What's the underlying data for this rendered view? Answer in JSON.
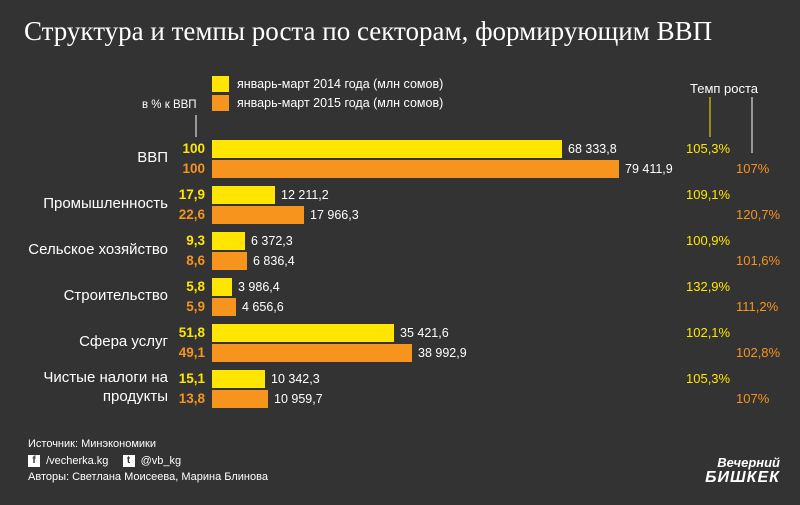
{
  "title": "Структура и темпы роста по секторам, формирующим ВВП",
  "legend": [
    {
      "label": "январь-март 2014 года (млн сомов)",
      "color": "#ffe600"
    },
    {
      "label": "январь-март 2015 года (млн сомов)",
      "color": "#f7941d"
    }
  ],
  "share_header": "в % к ВВП",
  "growth_header": "Темп роста",
  "colors": {
    "y2014": "#ffe600",
    "y2015": "#f7941d",
    "background": "#333333"
  },
  "chart_data": {
    "type": "bar",
    "orientation": "horizontal",
    "title": "Структура и темпы роста по секторам, формирующим ВВП",
    "categories": [
      "ВВП",
      "Промышленность",
      "Сельское хозяйство",
      "Строительство",
      "Сфера услуг",
      "Чистые налоги на продукты"
    ],
    "series": [
      {
        "name": "январь-март 2014 года (млн сомов)",
        "values": [
          68333.8,
          12211.2,
          6372.3,
          3986.4,
          35421.6,
          10342.3
        ],
        "labels": [
          "68 333,8",
          "12 211,2",
          "6 372,3",
          "3 986,4",
          "35 421,6",
          "10 342,3"
        ],
        "share": [
          "100",
          "17,9",
          "9,3",
          "5,8",
          "51,8",
          "15,1"
        ],
        "growth": [
          "105,3%",
          "109,1%",
          "100,9%",
          "132,9%",
          "102,1%",
          "105,3%"
        ]
      },
      {
        "name": "январь-март 2015 года (млн сомов)",
        "values": [
          79411.9,
          17966.3,
          6836.4,
          4656.6,
          38992.9,
          10959.7
        ],
        "labels": [
          "79 411,9",
          "17 966,3",
          "6 836,4",
          "4 656,6",
          "38 992,9",
          "10 959,7"
        ],
        "share": [
          "100",
          "22,6",
          "8,6",
          "5,9",
          "49,1",
          "13,8"
        ],
        "growth": [
          "107%",
          "120,7%",
          "101,6%",
          "111,2%",
          "102,8%",
          "107%"
        ]
      }
    ],
    "grid": false,
    "legend_position": "top"
  },
  "footer": {
    "source": "Источник: Минэкономики",
    "facebook_icon": "f",
    "facebook": "/vecherka.kg",
    "twitter_icon": "t",
    "twitter": "@vb_kg",
    "authors": "Авторы: Светлана Моисеева, Марина Блинова"
  },
  "logo": {
    "line1": "Вечерний",
    "line2": "БИШКЕК"
  }
}
